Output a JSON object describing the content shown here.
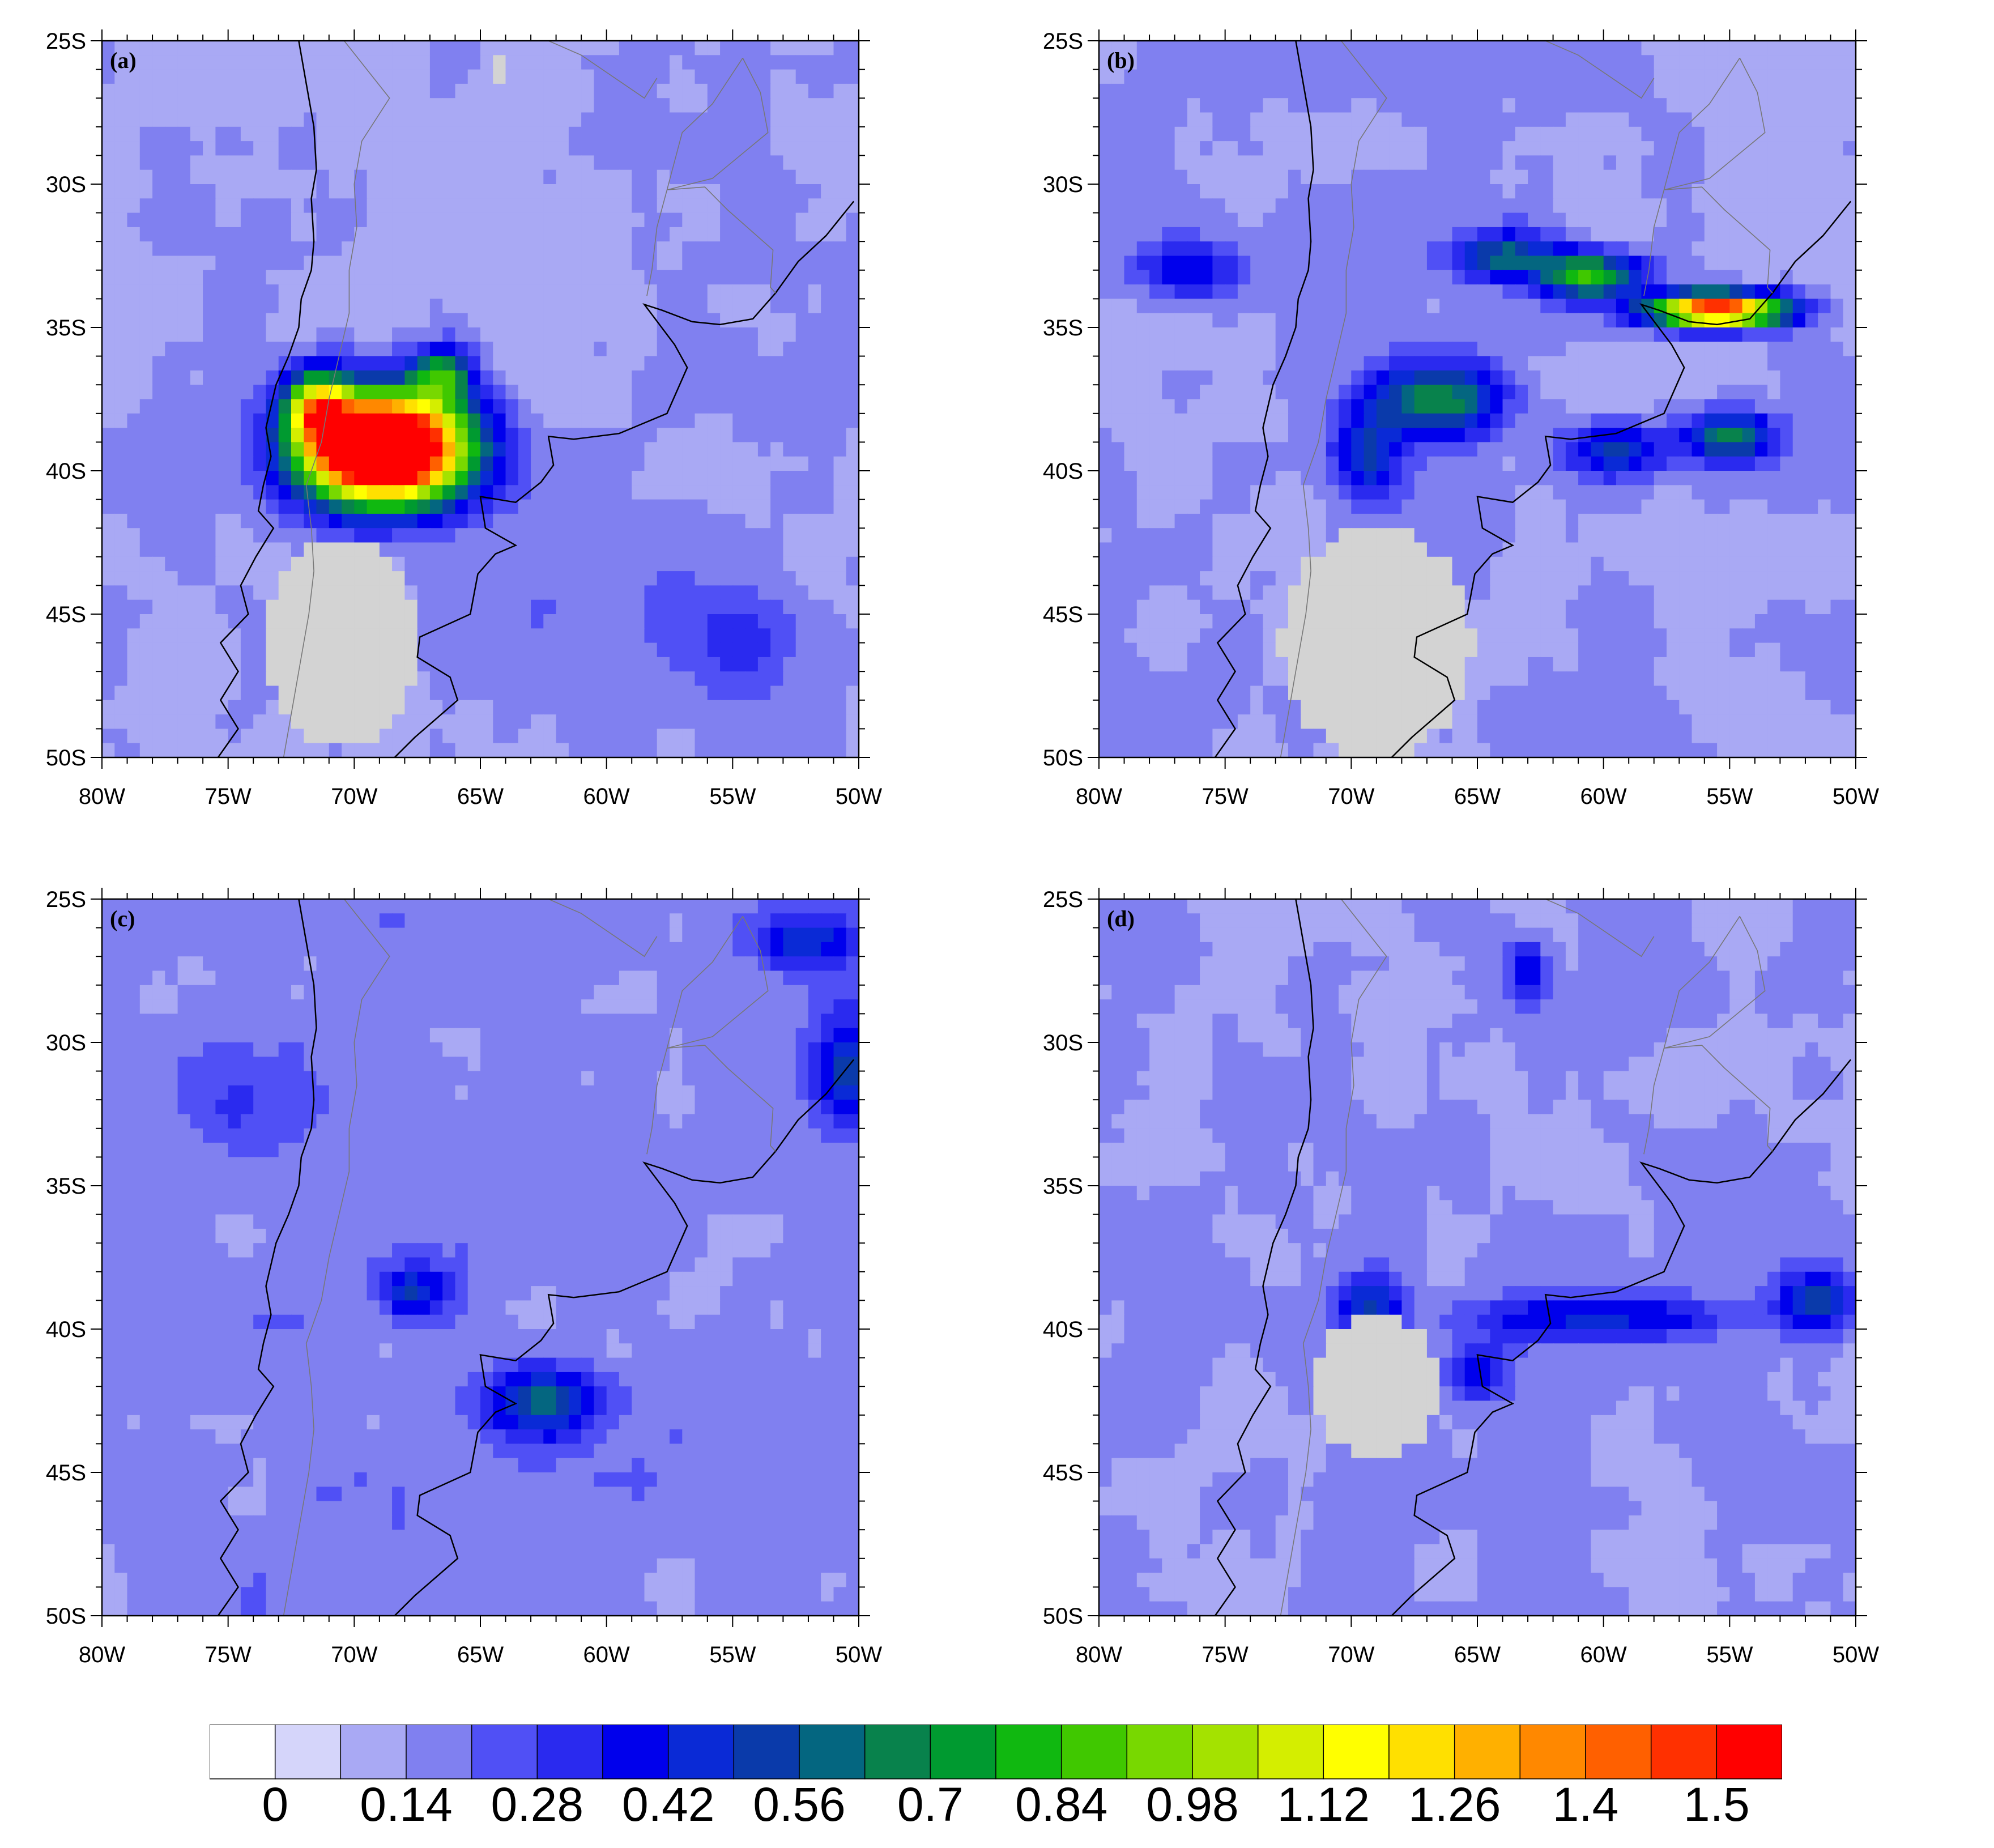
{
  "figure": {
    "panels": [
      {
        "id": "a",
        "label": "(a)"
      },
      {
        "id": "b",
        "label": "(b)"
      },
      {
        "id": "c",
        "label": "(c)"
      },
      {
        "id": "d",
        "label": "(d)"
      }
    ],
    "lon_ticks": [
      -80,
      -75,
      -70,
      -65,
      -60,
      -55,
      -50
    ],
    "lon_tick_labels": [
      "80W",
      "75W",
      "70W",
      "65W",
      "60W",
      "55W",
      "50W"
    ],
    "lat_ticks": [
      -25,
      -30,
      -35,
      -40,
      -45,
      -50
    ],
    "lat_tick_labels": [
      "25S",
      "30S",
      "35S",
      "40S",
      "45S",
      "50S"
    ],
    "lon_range": [
      -80,
      -50
    ],
    "lat_range": [
      -50,
      -25
    ],
    "missing_color": "#d3d3d3",
    "colorbar": {
      "colors": [
        "#ffffff",
        "#d5d5fa",
        "#a9a9f4",
        "#8080f0",
        "#5050f5",
        "#2a2aef",
        "#0000ec",
        "#0a2ad6",
        "#0a3aaa",
        "#046680",
        "#08824c",
        "#009a30",
        "#10b810",
        "#40c800",
        "#78d800",
        "#a4e200",
        "#d4ee00",
        "#ffff00",
        "#ffe000",
        "#ffb000",
        "#ff8800",
        "#ff6000",
        "#ff3000",
        "#ff0000"
      ],
      "labels": [
        "0",
        "0.14",
        "0.28",
        "0.42",
        "0.56",
        "0.7",
        "0.84",
        "0.98",
        "1.12",
        "1.26",
        "1.4",
        "1.5"
      ]
    }
  }
}
